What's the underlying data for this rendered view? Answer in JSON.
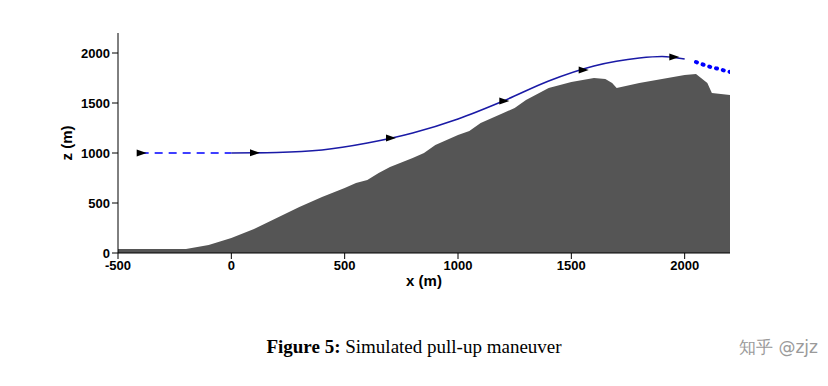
{
  "chart_data": {
    "type": "line",
    "title": "Figure 5: Simulated pull-up maneuver",
    "x_label": "x (m)",
    "y_label": "z (m)",
    "annotations": [
      "知乎 @zjz"
    ],
    "xlim": [
      -500,
      2200
    ],
    "xticks": [
      -500,
      0,
      500,
      1000,
      1500,
      2000
    ],
    "ylim": [
      0,
      2200
    ],
    "yticks": [
      0,
      500,
      1000,
      1500,
      2000
    ],
    "grid": false,
    "series": [
      {
        "type": "area",
        "color": "#555555",
        "x": [
          -500,
          -400,
          -300,
          -200,
          -100,
          0,
          100,
          200,
          300,
          400,
          500,
          550,
          600,
          650,
          700,
          800,
          850,
          900,
          1000,
          1050,
          1100,
          1200,
          1250,
          1300,
          1400,
          1500,
          1600,
          1650,
          1680,
          1700,
          1800,
          1900,
          2000,
          2050,
          2100,
          2120,
          2200
        ],
        "values": [
          40,
          40,
          40,
          40,
          80,
          150,
          240,
          350,
          460,
          560,
          650,
          700,
          730,
          800,
          860,
          950,
          1000,
          1080,
          1180,
          1220,
          1300,
          1400,
          1450,
          1530,
          1650,
          1710,
          1750,
          1740,
          1700,
          1650,
          1700,
          1740,
          1780,
          1790,
          1700,
          1600,
          1580
        ]
      },
      {
        "type": "line",
        "color": "#0000ff",
        "line_style": "dashed",
        "x": [
          -400,
          0
        ],
        "values": [
          1000,
          1000
        ]
      },
      {
        "type": "line",
        "color": "#1a1aa6",
        "line_style": "solid",
        "x": [
          0,
          200,
          400,
          600,
          800,
          1000,
          1200,
          1400,
          1600,
          1800,
          1900,
          2000
        ],
        "values": [
          1000,
          1005,
          1030,
          1100,
          1200,
          1340,
          1520,
          1720,
          1870,
          1950,
          1965,
          1940
        ]
      },
      {
        "type": "line",
        "color": "#0000ff",
        "line_style": "dotted",
        "x": [
          2050,
          2100,
          2150,
          2200
        ],
        "values": [
          1910,
          1870,
          1840,
          1810
        ]
      },
      {
        "type": "scatter",
        "color": "#000000",
        "marker": "arrow",
        "x": [
          -400,
          100,
          700,
          1200,
          1550,
          1950
        ],
        "values": [
          1000,
          1002,
          1150,
          1520,
          1830,
          1960
        ]
      }
    ]
  }
}
